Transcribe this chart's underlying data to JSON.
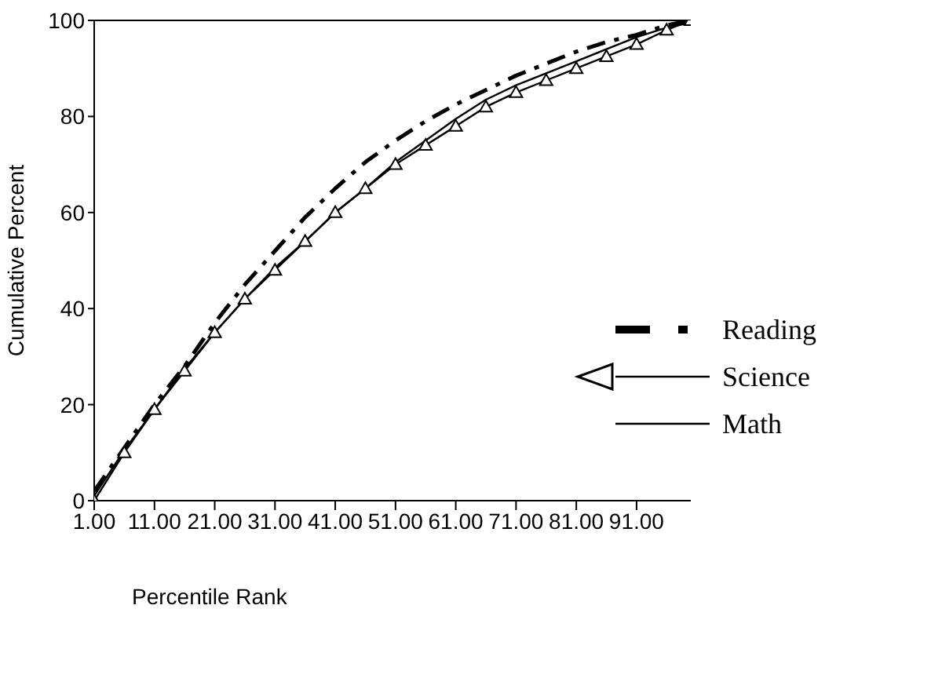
{
  "chart_data": {
    "type": "line",
    "xlabel": "Percentile Rank",
    "ylabel": "Cumulative Percent",
    "x": [
      1,
      6,
      11,
      16,
      21,
      26,
      31,
      36,
      41,
      46,
      51,
      56,
      61,
      66,
      71,
      76,
      81,
      86,
      91,
      96,
      100
    ],
    "xlim": [
      1,
      100
    ],
    "ylim": [
      0,
      100
    ],
    "xticks": [
      {
        "value": 1,
        "label": "1.00"
      },
      {
        "value": 11,
        "label": "11.00"
      },
      {
        "value": 21,
        "label": "21.00"
      },
      {
        "value": 31,
        "label": "31.00"
      },
      {
        "value": 41,
        "label": "41.00"
      },
      {
        "value": 51,
        "label": "51.00"
      },
      {
        "value": 61,
        "label": "61.00"
      },
      {
        "value": 71,
        "label": "71.00"
      },
      {
        "value": 81,
        "label": "81.00"
      },
      {
        "value": 91,
        "label": "91.00"
      }
    ],
    "yticks": [
      0,
      20,
      40,
      60,
      80,
      100
    ],
    "grid": false,
    "legend": "right",
    "series": [
      {
        "name": "Reading",
        "color": "#000000",
        "line_style": "dashed",
        "marker": "none",
        "values": [
          2,
          11,
          20,
          28,
          37,
          45,
          52,
          59,
          65,
          70.5,
          75,
          79,
          82.5,
          85.5,
          88.5,
          91,
          93.5,
          95.5,
          97,
          99,
          100
        ]
      },
      {
        "name": "Science",
        "color": "#000000",
        "line_style": "solid",
        "marker": "triangle",
        "values": [
          0,
          10,
          19,
          27,
          35,
          42,
          48,
          54,
          60,
          65,
          70,
          74,
          78,
          82,
          85,
          87.5,
          90,
          92.5,
          95,
          98,
          100
        ]
      },
      {
        "name": "Math",
        "color": "#000000",
        "line_style": "solid",
        "marker": "none",
        "values": [
          1,
          10.5,
          19,
          27.5,
          35,
          42,
          48.5,
          54,
          60,
          65,
          70.5,
          75,
          79.5,
          83.5,
          86.5,
          89,
          91.5,
          94,
          96.5,
          98.5,
          99.5
        ]
      }
    ]
  }
}
